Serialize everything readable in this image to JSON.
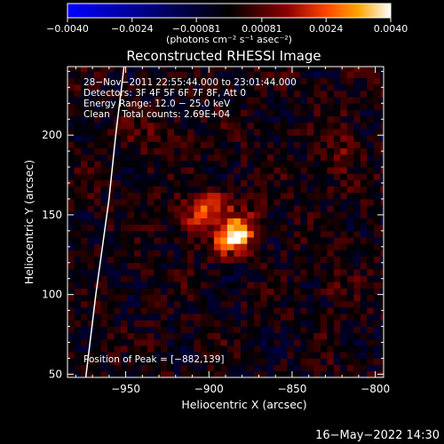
{
  "colorbar": {
    "tick_labels": [
      "−0.0040",
      "−0.0024",
      "−0.00081",
      "0.00081",
      "0.0024",
      "0.0040"
    ],
    "unit_label": "(photons cm⁻² s⁻¹ asec⁻²)"
  },
  "footer": {
    "timestamp": "16−May−2022 14:30"
  },
  "chart_data": {
    "type": "heatmap",
    "title": "Reconstructed RHESSI Image",
    "xlabel": "Heliocentric X (arcsec)",
    "ylabel": "Heliocentric Y (arcsec)",
    "xlim": [
      -985,
      -795
    ],
    "ylim": [
      48,
      243
    ],
    "xticks": [
      -950,
      -900,
      -850,
      -800
    ],
    "yticks": [
      50,
      100,
      150,
      200
    ],
    "xtick_labels": [
      "−950",
      "−900",
      "−850",
      "−800"
    ],
    "ytick_labels": [
      "50",
      "100",
      "150",
      "200"
    ],
    "colorbar_range": [
      -0.004,
      0.004
    ],
    "colormap": [
      "#0000ff",
      "#000000",
      "#8b0000",
      "#ff4500",
      "#ffa500",
      "#ffffff"
    ],
    "annotations": [
      "28−Nov−2011 22:55:44.000 to 23:01:44.000",
      "Detectors: 3F 4F 5F 6F 7F 8F, Att 0",
      "Energy Range: 12.0 − 25.0 keV",
      "Clean    Total counts: 2.69E+04",
      "Position of Peak = [−882,139]"
    ],
    "peak": {
      "x": -882,
      "y": 139
    },
    "limb": [
      [
        -974,
        48
      ],
      [
        -968,
        100
      ],
      [
        -960,
        160
      ],
      [
        -956,
        200
      ],
      [
        -951,
        243
      ]
    ],
    "sources": [
      {
        "x": -884,
        "y": 138,
        "amp": 0.004,
        "sx": 9,
        "sy": 7,
        "angle": 40
      },
      {
        "x": -902,
        "y": 152,
        "amp": 0.0024,
        "sx": 12,
        "sy": 7,
        "angle": 30
      },
      {
        "x": -822,
        "y": 190,
        "amp": 0.0009,
        "sx": 7,
        "sy": 16,
        "angle": 0
      },
      {
        "x": -825,
        "y": 108,
        "amp": 0.0008,
        "sx": 7,
        "sy": 9,
        "angle": 0
      },
      {
        "x": -930,
        "y": 200,
        "amp": 0.0006,
        "sx": 14,
        "sy": 10,
        "angle": 0
      }
    ]
  }
}
